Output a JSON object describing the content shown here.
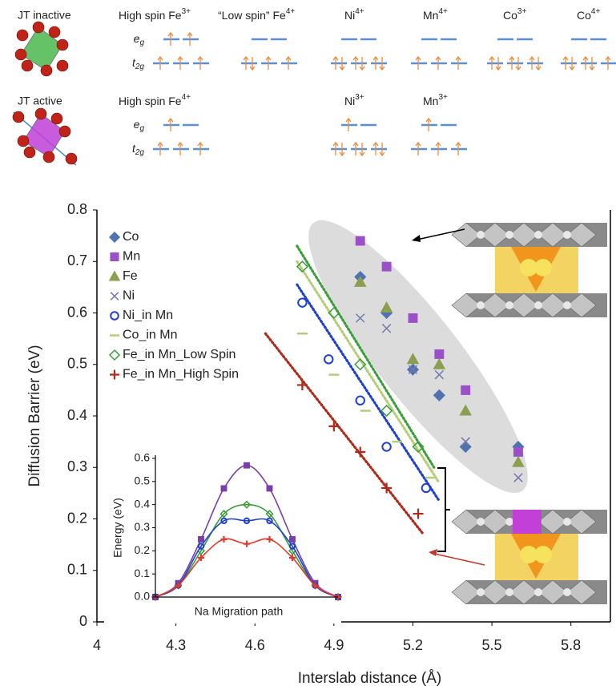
{
  "orbitals": {
    "eg": {
      "base": "e",
      "sub": "g"
    },
    "t2g": {
      "base": "t",
      "sub": "2g"
    },
    "rows": [
      {
        "label": "JT inactive",
        "ions": [
          {
            "name": "High spin Fe",
            "charge": "3+"
          },
          {
            "name": "“Low spin” Fe",
            "charge": "4+"
          },
          {
            "name": "Ni",
            "charge": "4+"
          },
          {
            "name": "Mn",
            "charge": "4+"
          },
          {
            "name": "Co",
            "charge": "3+"
          },
          {
            "name": "Co",
            "charge": "4+"
          }
        ]
      },
      {
        "label": "JT active",
        "ions": [
          {
            "name": "High spin Fe",
            "charge": "4+"
          },
          {
            "name": "Ni",
            "charge": "3+"
          },
          {
            "name": "Mn",
            "charge": "3+"
          }
        ]
      }
    ]
  },
  "chart_data": [
    {
      "type": "scatter",
      "xlabel": "Interslab distance (Å)",
      "ylabel": "Diffusion Barrier (eV)",
      "xlim": [
        4,
        5.95
      ],
      "ylim": [
        0,
        0.8
      ],
      "xticks": [
        4,
        4.3,
        4.6,
        4.9,
        5.2,
        5.5,
        5.8
      ],
      "yticks": [
        0,
        0.1,
        0.2,
        0.3,
        0.4,
        0.5,
        0.6,
        0.7,
        0.8
      ],
      "legend": "upper left",
      "series": [
        {
          "name": "Co",
          "color": "#4f72b0",
          "marker": "diamond",
          "x": [
            5.0,
            5.1,
            5.2,
            5.3,
            5.4,
            5.6
          ],
          "values": [
            0.67,
            0.6,
            0.49,
            0.44,
            0.34,
            0.34
          ]
        },
        {
          "name": "Mn",
          "color": "#9b50c8",
          "marker": "square",
          "x": [
            5.0,
            5.1,
            5.2,
            5.3,
            5.4,
            5.6
          ],
          "values": [
            0.74,
            0.69,
            0.59,
            0.52,
            0.45,
            0.33
          ]
        },
        {
          "name": "Fe",
          "color": "#8c9e4f",
          "marker": "triangle",
          "x": [
            5.0,
            5.1,
            5.2,
            5.3,
            5.4,
            5.6
          ],
          "values": [
            0.66,
            0.61,
            0.51,
            0.5,
            0.41,
            0.31
          ]
        },
        {
          "name": "Ni",
          "color": "#7378ad",
          "marker": "x",
          "x": [
            5.0,
            5.1,
            5.2,
            5.3,
            5.4,
            5.6
          ],
          "values": [
            0.59,
            0.57,
            0.49,
            0.48,
            0.35,
            0.28
          ]
        },
        {
          "name": "Ni_in Mn",
          "color": "#2040d0",
          "marker": "circle-open",
          "x": [
            4.78,
            4.88,
            5.0,
            5.1,
            5.25
          ],
          "values": [
            0.62,
            0.51,
            0.43,
            0.34,
            0.26
          ],
          "fit": {
            "x": [
              4.76,
              5.3
            ],
            "values": [
              0.655,
              0.235
            ]
          }
        },
        {
          "name": "Co_in Mn",
          "color": "#b3cd78",
          "marker": "dash",
          "x": [
            4.78,
            4.9,
            5.02,
            5.14,
            5.27
          ],
          "values": [
            0.56,
            0.48,
            0.41,
            0.35,
            0.28
          ],
          "fit": {
            "x": [
              4.76,
              5.3
            ],
            "values": [
              0.7,
              0.27
            ]
          }
        },
        {
          "name": "Fe_in Mn_Low Spin",
          "color": "#3a9e3a",
          "marker": "diamond-open",
          "x": [
            4.78,
            4.9,
            5.0,
            5.1,
            5.22
          ],
          "values": [
            0.69,
            0.6,
            0.5,
            0.41,
            0.34
          ],
          "fit": {
            "x": [
              4.76,
              5.28
            ],
            "values": [
              0.73,
              0.3
            ]
          }
        },
        {
          "name": "Fe_in Mn_High Spin",
          "color": "#b02a1c",
          "marker": "plus",
          "x": [
            4.78,
            4.9,
            5.0,
            5.1,
            5.22
          ],
          "values": [
            0.46,
            0.38,
            0.33,
            0.26,
            0.21
          ],
          "fit": {
            "x": [
              4.64,
              5.24
            ],
            "values": [
              0.56,
              0.17
            ]
          }
        }
      ]
    },
    {
      "type": "line",
      "xlabel": "Na Migration path",
      "ylabel": "Energy (eV)",
      "x": [
        0,
        1,
        2,
        3,
        4,
        5,
        6,
        7,
        8
      ],
      "xlim": [
        0,
        8
      ],
      "ylim": [
        0,
        0.6
      ],
      "yticks": [
        {
          "value": 0,
          "label": "0.0"
        },
        0.1,
        0.2,
        0.3,
        0.4,
        0.5,
        0.6
      ],
      "series": [
        {
          "color": "#7a3ea8",
          "marker": "square",
          "values": [
            0,
            0.06,
            0.25,
            0.47,
            0.57,
            0.47,
            0.25,
            0.06,
            0
          ]
        },
        {
          "color": "#3a9e3a",
          "marker": "diamond-open",
          "values": [
            0,
            0.05,
            0.2,
            0.36,
            0.4,
            0.36,
            0.2,
            0.05,
            0
          ]
        },
        {
          "color": "#2040d0",
          "marker": "circle-open",
          "values": [
            0,
            0.05,
            0.22,
            0.33,
            0.33,
            0.33,
            0.22,
            0.05,
            0
          ]
        },
        {
          "color": "#e03a2a",
          "marker": "plus",
          "values": [
            0,
            0.05,
            0.17,
            0.25,
            0.23,
            0.25,
            0.17,
            0.05,
            0
          ]
        }
      ]
    }
  ]
}
